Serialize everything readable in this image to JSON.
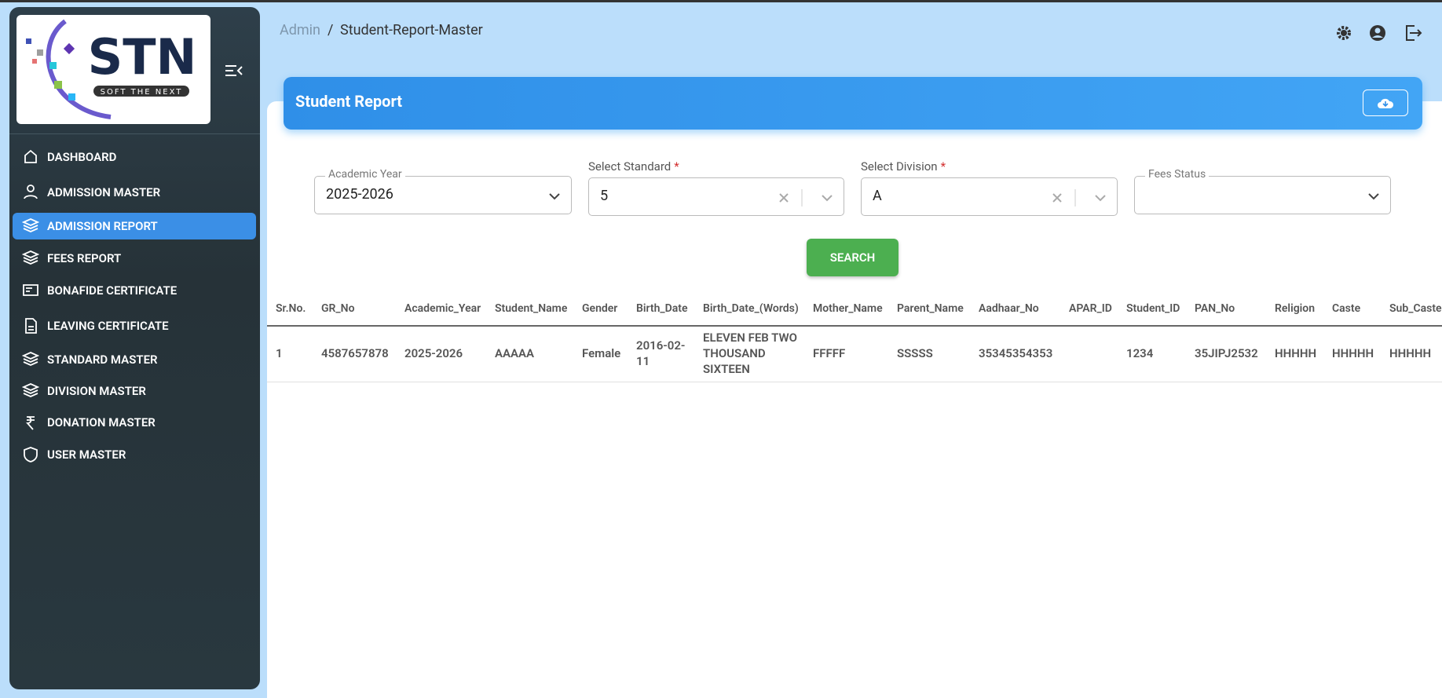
{
  "header": {
    "breadcrumb": [
      "Admin",
      "/",
      "Student-Report-Master"
    ]
  },
  "logo": {
    "title": "STN",
    "tagline": "SOFT THE NEXT"
  },
  "sidebar": {
    "menu": [
      "DASHBOARD",
      "ADMISSION MASTER",
      "ADMISSION REPORT",
      "FEES REPORT",
      "BONAFIDE CERTIFICATE",
      "LEAVING CERTIFICATE",
      "STANDARD MASTER",
      "DIVISION MASTER",
      "DONATION MASTER",
      "USER MASTER"
    ]
  },
  "card": {
    "title": "Student Report"
  },
  "filters": [
    {
      "label": "Academic Year",
      "value": "2025-2026"
    },
    {
      "label": "Select Standard",
      "mark": "*",
      "value": "5"
    },
    {
      "label": "Select Division",
      "mark": "*",
      "value": "A"
    },
    {
      "label": "Fees Status"
    }
  ],
  "search_button": "SEARCH",
  "table": {
    "columns": [
      "Sr.No.",
      "GR_No",
      "Academic_Year",
      "Student_Name",
      "Gender",
      "Birth_Date",
      "Birth_Date_(Words)",
      "Mother_Name",
      "Parent_Name",
      "Aadhaar_No",
      "APAR_ID",
      "Student_ID",
      "PAN_No",
      "Religion",
      "Caste",
      "Sub_Caste"
    ],
    "rows": [
      [
        "1",
        "4587657878",
        "2025-2026",
        "AAAAA",
        "Female",
        "2016-02-11",
        "ELEVEN FEB TWO THOUSAND SIXTEEN",
        "FFFFF",
        "SSSSS",
        "35345354353",
        null,
        "1234",
        "35JIPJ2532",
        "HHHHH",
        "HHHHH",
        "HHHHH"
      ]
    ]
  }
}
